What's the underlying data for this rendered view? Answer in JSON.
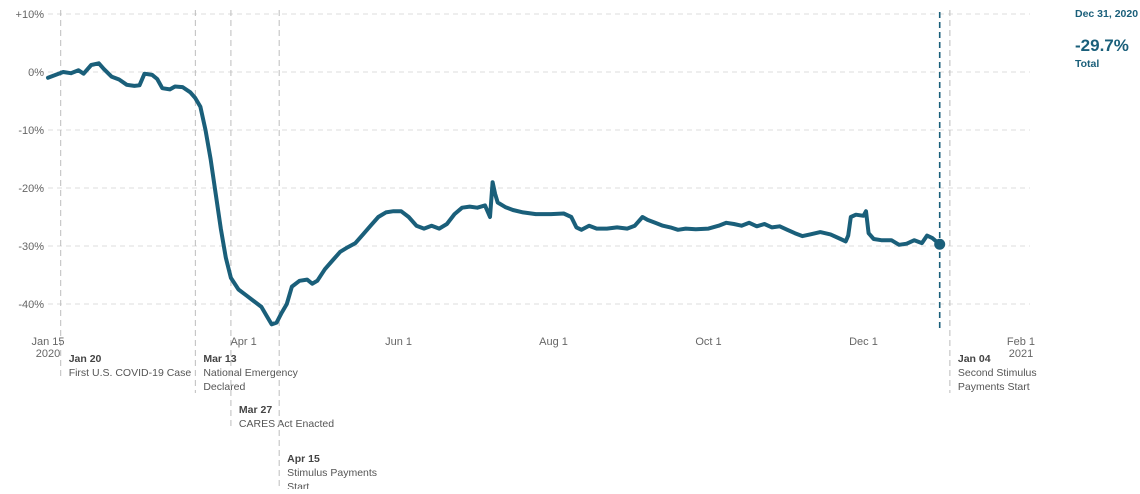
{
  "chart_data": {
    "type": "line",
    "title": "",
    "xlabel": "",
    "ylabel": "",
    "ylim": [
      -45,
      10
    ],
    "yticks": [
      {
        "value": 10,
        "label": "+10%"
      },
      {
        "value": 0,
        "label": "0%"
      },
      {
        "value": -10,
        "label": "-10%"
      },
      {
        "value": -20,
        "label": "-20%"
      },
      {
        "value": -30,
        "label": "-30%"
      },
      {
        "value": -40,
        "label": "-40%"
      }
    ],
    "xrange": [
      "2020-01-15",
      "2021-02-01"
    ],
    "xticks": [
      {
        "date": "2020-01-15",
        "line1": "Jan 15",
        "line2": "2020"
      },
      {
        "date": "2020-04-01",
        "line1": "Apr 1",
        "line2": ""
      },
      {
        "date": "2020-06-01",
        "line1": "Jun 1",
        "line2": ""
      },
      {
        "date": "2020-08-01",
        "line1": "Aug 1",
        "line2": ""
      },
      {
        "date": "2020-10-01",
        "line1": "Oct 1",
        "line2": ""
      },
      {
        "date": "2020-12-01",
        "line1": "Dec 1",
        "line2": ""
      },
      {
        "date": "2021-02-01",
        "line1": "Feb 1",
        "line2": "2021"
      }
    ],
    "grid": true,
    "series": [
      {
        "color": "#1a5f7a",
        "points": [
          [
            "2020-01-15",
            -1.0
          ],
          [
            "2020-01-18",
            -0.5
          ],
          [
            "2020-01-21",
            0.0
          ],
          [
            "2020-01-24",
            -0.2
          ],
          [
            "2020-01-27",
            0.3
          ],
          [
            "2020-01-29",
            -0.3
          ],
          [
            "2020-02-01",
            1.2
          ],
          [
            "2020-02-04",
            1.5
          ],
          [
            "2020-02-06",
            0.5
          ],
          [
            "2020-02-09",
            -0.8
          ],
          [
            "2020-02-12",
            -1.3
          ],
          [
            "2020-02-15",
            -2.2
          ],
          [
            "2020-02-18",
            -2.4
          ],
          [
            "2020-02-20",
            -2.3
          ],
          [
            "2020-02-22",
            -0.3
          ],
          [
            "2020-02-25",
            -0.5
          ],
          [
            "2020-02-27",
            -1.2
          ],
          [
            "2020-02-29",
            -2.8
          ],
          [
            "2020-03-03",
            -3.0
          ],
          [
            "2020-03-05",
            -2.5
          ],
          [
            "2020-03-08",
            -2.6
          ],
          [
            "2020-03-11",
            -3.5
          ],
          [
            "2020-03-13",
            -4.5
          ],
          [
            "2020-03-15",
            -6.0
          ],
          [
            "2020-03-17",
            -10.0
          ],
          [
            "2020-03-19",
            -15.0
          ],
          [
            "2020-03-21",
            -21.0
          ],
          [
            "2020-03-23",
            -27.0
          ],
          [
            "2020-03-25",
            -32.0
          ],
          [
            "2020-03-27",
            -35.5
          ],
          [
            "2020-03-30",
            -37.5
          ],
          [
            "2020-04-02",
            -38.5
          ],
          [
            "2020-04-05",
            -39.5
          ],
          [
            "2020-04-08",
            -40.5
          ],
          [
            "2020-04-10",
            -42.0
          ],
          [
            "2020-04-12",
            -43.5
          ],
          [
            "2020-04-14",
            -43.2
          ],
          [
            "2020-04-16",
            -41.5
          ],
          [
            "2020-04-18",
            -40.0
          ],
          [
            "2020-04-20",
            -37.0
          ],
          [
            "2020-04-23",
            -36.0
          ],
          [
            "2020-04-26",
            -35.8
          ],
          [
            "2020-04-28",
            -36.5
          ],
          [
            "2020-04-30",
            -36.0
          ],
          [
            "2020-05-03",
            -34.0
          ],
          [
            "2020-05-06",
            -32.5
          ],
          [
            "2020-05-09",
            -31.0
          ],
          [
            "2020-05-12",
            -30.2
          ],
          [
            "2020-05-15",
            -29.5
          ],
          [
            "2020-05-18",
            -28.0
          ],
          [
            "2020-05-21",
            -26.5
          ],
          [
            "2020-05-24",
            -25.0
          ],
          [
            "2020-05-27",
            -24.2
          ],
          [
            "2020-05-30",
            -24.0
          ],
          [
            "2020-06-02",
            -24.0
          ],
          [
            "2020-06-05",
            -25.0
          ],
          [
            "2020-06-08",
            -26.5
          ],
          [
            "2020-06-11",
            -27.0
          ],
          [
            "2020-06-14",
            -26.5
          ],
          [
            "2020-06-17",
            -27.0
          ],
          [
            "2020-06-20",
            -26.2
          ],
          [
            "2020-06-23",
            -24.5
          ],
          [
            "2020-06-26",
            -23.4
          ],
          [
            "2020-06-29",
            -23.2
          ],
          [
            "2020-07-02",
            -23.4
          ],
          [
            "2020-07-05",
            -23.0
          ],
          [
            "2020-07-07",
            -25.0
          ],
          [
            "2020-07-08",
            -19.0
          ],
          [
            "2020-07-09",
            -21.0
          ],
          [
            "2020-07-10",
            -22.5
          ],
          [
            "2020-07-13",
            -23.3
          ],
          [
            "2020-07-16",
            -23.8
          ],
          [
            "2020-07-20",
            -24.2
          ],
          [
            "2020-07-25",
            -24.5
          ],
          [
            "2020-07-31",
            -24.5
          ],
          [
            "2020-08-05",
            -24.4
          ],
          [
            "2020-08-08",
            -25.0
          ],
          [
            "2020-08-10",
            -26.8
          ],
          [
            "2020-08-12",
            -27.2
          ],
          [
            "2020-08-15",
            -26.5
          ],
          [
            "2020-08-18",
            -27.0
          ],
          [
            "2020-08-22",
            -27.0
          ],
          [
            "2020-08-26",
            -26.8
          ],
          [
            "2020-08-30",
            -27.0
          ],
          [
            "2020-09-02",
            -26.5
          ],
          [
            "2020-09-05",
            -25.0
          ],
          [
            "2020-09-07",
            -25.5
          ],
          [
            "2020-09-10",
            -26.0
          ],
          [
            "2020-09-13",
            -26.5
          ],
          [
            "2020-09-16",
            -26.8
          ],
          [
            "2020-09-19",
            -27.2
          ],
          [
            "2020-09-22",
            -27.0
          ],
          [
            "2020-09-26",
            -27.1
          ],
          [
            "2020-10-01",
            -27.0
          ],
          [
            "2020-10-05",
            -26.5
          ],
          [
            "2020-10-08",
            -26.0
          ],
          [
            "2020-10-11",
            -26.2
          ],
          [
            "2020-10-14",
            -26.5
          ],
          [
            "2020-10-17",
            -26.0
          ],
          [
            "2020-10-20",
            -26.6
          ],
          [
            "2020-10-23",
            -26.2
          ],
          [
            "2020-10-26",
            -26.8
          ],
          [
            "2020-10-29",
            -26.6
          ],
          [
            "2020-11-01",
            -27.2
          ],
          [
            "2020-11-04",
            -27.8
          ],
          [
            "2020-11-07",
            -28.3
          ],
          [
            "2020-11-10",
            -28.0
          ],
          [
            "2020-11-14",
            -27.6
          ],
          [
            "2020-11-18",
            -28.0
          ],
          [
            "2020-11-22",
            -28.8
          ],
          [
            "2020-11-24",
            -29.2
          ],
          [
            "2020-11-25",
            -28.2
          ],
          [
            "2020-11-26",
            -25.0
          ],
          [
            "2020-11-28",
            -24.6
          ],
          [
            "2020-12-01",
            -24.8
          ],
          [
            "2020-12-02",
            -24.0
          ],
          [
            "2020-12-03",
            -27.8
          ],
          [
            "2020-12-05",
            -28.8
          ],
          [
            "2020-12-08",
            -29.0
          ],
          [
            "2020-12-12",
            -29.0
          ],
          [
            "2020-12-15",
            -29.8
          ],
          [
            "2020-12-18",
            -29.6
          ],
          [
            "2020-12-21",
            -29.0
          ],
          [
            "2020-12-24",
            -29.5
          ],
          [
            "2020-12-26",
            -28.2
          ],
          [
            "2020-12-28",
            -28.6
          ],
          [
            "2020-12-31",
            -29.7
          ]
        ]
      }
    ],
    "events": [
      {
        "date": "2020-01-20",
        "label_date": "Jan 20",
        "label_lines": [
          "First U.S. COVID-19 Case"
        ],
        "tier": 0
      },
      {
        "date": "2020-03-13",
        "label_date": "Mar 13",
        "label_lines": [
          "National Emergency",
          "Declared"
        ],
        "tier": 0
      },
      {
        "date": "2020-03-27",
        "label_date": "Mar 27",
        "label_lines": [
          "CARES Act Enacted"
        ],
        "tier": 1
      },
      {
        "date": "2020-04-15",
        "label_date": "Apr 15",
        "label_lines": [
          "Stimulus Payments",
          "Start"
        ],
        "tier": 2
      },
      {
        "date": "2021-01-04",
        "label_date": "Jan 04",
        "label_lines": [
          "Second Stimulus",
          "Payments Start"
        ],
        "tier": 0
      }
    ],
    "highlight": {
      "date": "2020-12-31",
      "date_label": "Dec 31, 2020",
      "value": -29.7,
      "value_label": "-29.7%",
      "label": "Total",
      "color": "#1a5f7a"
    }
  }
}
